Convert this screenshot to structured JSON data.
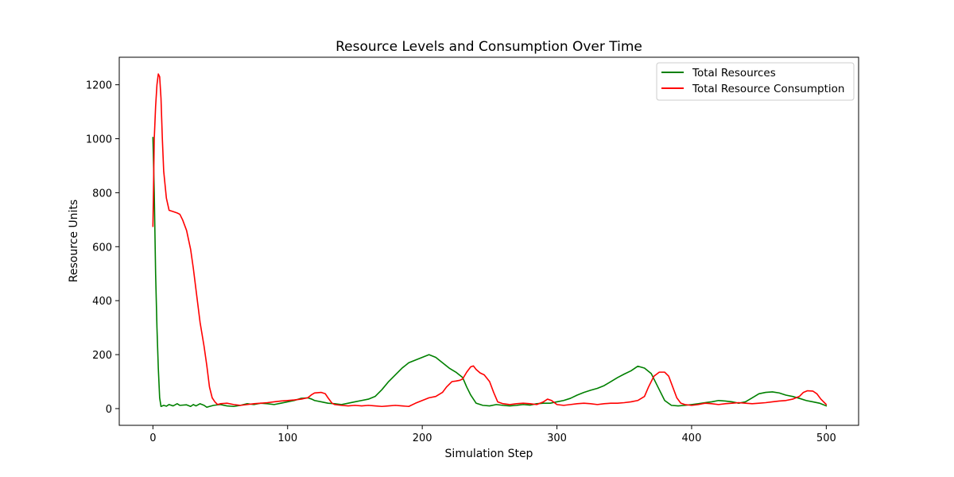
{
  "chart_data": {
    "type": "line",
    "title": "Resource Levels and Consumption Over Time",
    "xlabel": "Simulation Step",
    "ylabel": "Resource Units",
    "xlim": [
      -25,
      524
    ],
    "ylim": [
      -62,
      1302
    ],
    "xticks": [
      0,
      100,
      200,
      300,
      400,
      500
    ],
    "yticks": [
      0,
      200,
      400,
      600,
      800,
      1000,
      1200
    ],
    "grid": false,
    "legend_position": "upper-right",
    "series": [
      {
        "name": "Total Resources",
        "color": "#008000",
        "points": [
          [
            0,
            1005
          ],
          [
            1,
            800
          ],
          [
            2,
            500
          ],
          [
            3,
            300
          ],
          [
            4,
            150
          ],
          [
            5,
            40
          ],
          [
            6,
            8
          ],
          [
            8,
            12
          ],
          [
            10,
            9
          ],
          [
            12,
            15
          ],
          [
            15,
            10
          ],
          [
            18,
            18
          ],
          [
            20,
            12
          ],
          [
            25,
            14
          ],
          [
            28,
            8
          ],
          [
            30,
            15
          ],
          [
            32,
            10
          ],
          [
            35,
            18
          ],
          [
            38,
            12
          ],
          [
            40,
            5
          ],
          [
            42,
            8
          ],
          [
            45,
            12
          ],
          [
            50,
            15
          ],
          [
            55,
            10
          ],
          [
            60,
            8
          ],
          [
            65,
            12
          ],
          [
            70,
            18
          ],
          [
            75,
            15
          ],
          [
            80,
            20
          ],
          [
            85,
            18
          ],
          [
            90,
            15
          ],
          [
            95,
            20
          ],
          [
            100,
            25
          ],
          [
            105,
            30
          ],
          [
            110,
            38
          ],
          [
            115,
            40
          ],
          [
            118,
            35
          ],
          [
            120,
            30
          ],
          [
            125,
            25
          ],
          [
            130,
            20
          ],
          [
            135,
            18
          ],
          [
            140,
            15
          ],
          [
            145,
            20
          ],
          [
            150,
            25
          ],
          [
            155,
            30
          ],
          [
            160,
            35
          ],
          [
            165,
            45
          ],
          [
            170,
            70
          ],
          [
            175,
            100
          ],
          [
            180,
            125
          ],
          [
            185,
            150
          ],
          [
            190,
            170
          ],
          [
            195,
            180
          ],
          [
            200,
            190
          ],
          [
            205,
            200
          ],
          [
            210,
            190
          ],
          [
            215,
            170
          ],
          [
            220,
            150
          ],
          [
            225,
            135
          ],
          [
            230,
            115
          ],
          [
            233,
            80
          ],
          [
            236,
            50
          ],
          [
            240,
            20
          ],
          [
            245,
            12
          ],
          [
            250,
            10
          ],
          [
            255,
            15
          ],
          [
            260,
            12
          ],
          [
            265,
            10
          ],
          [
            270,
            12
          ],
          [
            275,
            15
          ],
          [
            280,
            13
          ],
          [
            285,
            18
          ],
          [
            290,
            20
          ],
          [
            295,
            20
          ],
          [
            300,
            25
          ],
          [
            305,
            30
          ],
          [
            310,
            38
          ],
          [
            315,
            50
          ],
          [
            320,
            60
          ],
          [
            325,
            68
          ],
          [
            330,
            75
          ],
          [
            335,
            85
          ],
          [
            340,
            100
          ],
          [
            345,
            115
          ],
          [
            350,
            128
          ],
          [
            355,
            140
          ],
          [
            360,
            157
          ],
          [
            365,
            150
          ],
          [
            370,
            130
          ],
          [
            375,
            80
          ],
          [
            380,
            30
          ],
          [
            385,
            12
          ],
          [
            390,
            10
          ],
          [
            395,
            12
          ],
          [
            400,
            15
          ],
          [
            405,
            18
          ],
          [
            410,
            22
          ],
          [
            415,
            25
          ],
          [
            420,
            30
          ],
          [
            425,
            28
          ],
          [
            430,
            25
          ],
          [
            435,
            20
          ],
          [
            440,
            25
          ],
          [
            445,
            40
          ],
          [
            450,
            55
          ],
          [
            455,
            60
          ],
          [
            460,
            62
          ],
          [
            465,
            58
          ],
          [
            470,
            50
          ],
          [
            475,
            45
          ],
          [
            480,
            38
          ],
          [
            485,
            30
          ],
          [
            490,
            25
          ],
          [
            495,
            20
          ],
          [
            500,
            10
          ]
        ]
      },
      {
        "name": "Total Resource Consumption",
        "color": "#ff0000",
        "points": [
          [
            0,
            675
          ],
          [
            1,
            1000
          ],
          [
            2,
            1120
          ],
          [
            3,
            1200
          ],
          [
            4,
            1240
          ],
          [
            5,
            1230
          ],
          [
            6,
            1150
          ],
          [
            7,
            1000
          ],
          [
            8,
            880
          ],
          [
            10,
            780
          ],
          [
            12,
            735
          ],
          [
            15,
            730
          ],
          [
            18,
            725
          ],
          [
            20,
            720
          ],
          [
            22,
            700
          ],
          [
            25,
            660
          ],
          [
            28,
            590
          ],
          [
            30,
            520
          ],
          [
            32,
            440
          ],
          [
            35,
            320
          ],
          [
            38,
            230
          ],
          [
            40,
            160
          ],
          [
            42,
            80
          ],
          [
            44,
            40
          ],
          [
            46,
            25
          ],
          [
            48,
            15
          ],
          [
            50,
            18
          ],
          [
            55,
            20
          ],
          [
            60,
            15
          ],
          [
            65,
            12
          ],
          [
            70,
            15
          ],
          [
            75,
            18
          ],
          [
            80,
            20
          ],
          [
            85,
            22
          ],
          [
            90,
            25
          ],
          [
            95,
            28
          ],
          [
            100,
            30
          ],
          [
            105,
            32
          ],
          [
            110,
            35
          ],
          [
            115,
            40
          ],
          [
            118,
            52
          ],
          [
            120,
            58
          ],
          [
            125,
            60
          ],
          [
            128,
            55
          ],
          [
            130,
            40
          ],
          [
            133,
            20
          ],
          [
            135,
            15
          ],
          [
            140,
            12
          ],
          [
            145,
            10
          ],
          [
            150,
            12
          ],
          [
            155,
            10
          ],
          [
            160,
            12
          ],
          [
            165,
            10
          ],
          [
            170,
            8
          ],
          [
            175,
            10
          ],
          [
            180,
            12
          ],
          [
            185,
            10
          ],
          [
            190,
            8
          ],
          [
            195,
            20
          ],
          [
            200,
            30
          ],
          [
            205,
            40
          ],
          [
            210,
            45
          ],
          [
            215,
            60
          ],
          [
            218,
            80
          ],
          [
            222,
            100
          ],
          [
            225,
            102
          ],
          [
            228,
            105
          ],
          [
            230,
            110
          ],
          [
            233,
            135
          ],
          [
            236,
            155
          ],
          [
            238,
            158
          ],
          [
            240,
            145
          ],
          [
            243,
            132
          ],
          [
            246,
            125
          ],
          [
            250,
            100
          ],
          [
            253,
            60
          ],
          [
            256,
            25
          ],
          [
            260,
            18
          ],
          [
            265,
            15
          ],
          [
            270,
            18
          ],
          [
            275,
            20
          ],
          [
            280,
            18
          ],
          [
            285,
            15
          ],
          [
            290,
            25
          ],
          [
            293,
            35
          ],
          [
            296,
            30
          ],
          [
            300,
            15
          ],
          [
            305,
            12
          ],
          [
            310,
            15
          ],
          [
            315,
            18
          ],
          [
            320,
            20
          ],
          [
            325,
            18
          ],
          [
            330,
            15
          ],
          [
            335,
            18
          ],
          [
            340,
            20
          ],
          [
            345,
            20
          ],
          [
            350,
            22
          ],
          [
            355,
            25
          ],
          [
            360,
            30
          ],
          [
            365,
            45
          ],
          [
            368,
            80
          ],
          [
            372,
            120
          ],
          [
            376,
            135
          ],
          [
            380,
            135
          ],
          [
            383,
            120
          ],
          [
            386,
            80
          ],
          [
            389,
            40
          ],
          [
            392,
            20
          ],
          [
            395,
            15
          ],
          [
            400,
            12
          ],
          [
            405,
            15
          ],
          [
            410,
            20
          ],
          [
            415,
            18
          ],
          [
            420,
            15
          ],
          [
            425,
            18
          ],
          [
            430,
            20
          ],
          [
            435,
            22
          ],
          [
            440,
            20
          ],
          [
            445,
            18
          ],
          [
            450,
            20
          ],
          [
            455,
            22
          ],
          [
            460,
            25
          ],
          [
            465,
            28
          ],
          [
            470,
            30
          ],
          [
            475,
            35
          ],
          [
            480,
            45
          ],
          [
            483,
            60
          ],
          [
            486,
            66
          ],
          [
            490,
            65
          ],
          [
            493,
            55
          ],
          [
            496,
            35
          ],
          [
            500,
            15
          ]
        ]
      }
    ]
  }
}
